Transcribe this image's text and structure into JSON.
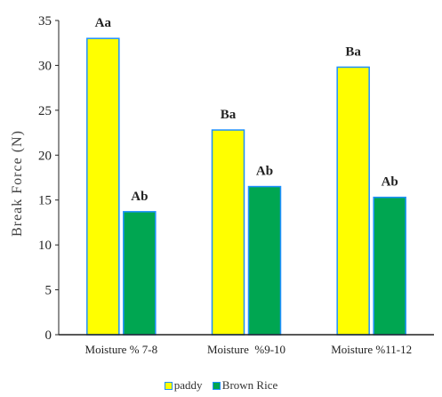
{
  "chart_data": {
    "type": "bar",
    "title": "",
    "ylabel": "Break Force (N)",
    "xlabel": "",
    "ylim": [
      0,
      35
    ],
    "yticks": [
      0,
      5,
      10,
      15,
      20,
      25,
      30,
      35
    ],
    "grid": false,
    "legend_position": "bottom",
    "categories": [
      "Moisture % 7-8",
      "Moisture  %9-10",
      "Moisture %11-12"
    ],
    "series": [
      {
        "name": "paddy",
        "color": "#ffff00",
        "values": [
          33,
          22.8,
          29.8
        ],
        "labels": [
          "Aa",
          "Ba",
          "Ba"
        ]
      },
      {
        "name": "Brown Rice",
        "color": "#00a651",
        "values": [
          13.7,
          16.5,
          15.3
        ],
        "labels": [
          "Ab",
          "Ab",
          "Ab"
        ]
      }
    ]
  }
}
